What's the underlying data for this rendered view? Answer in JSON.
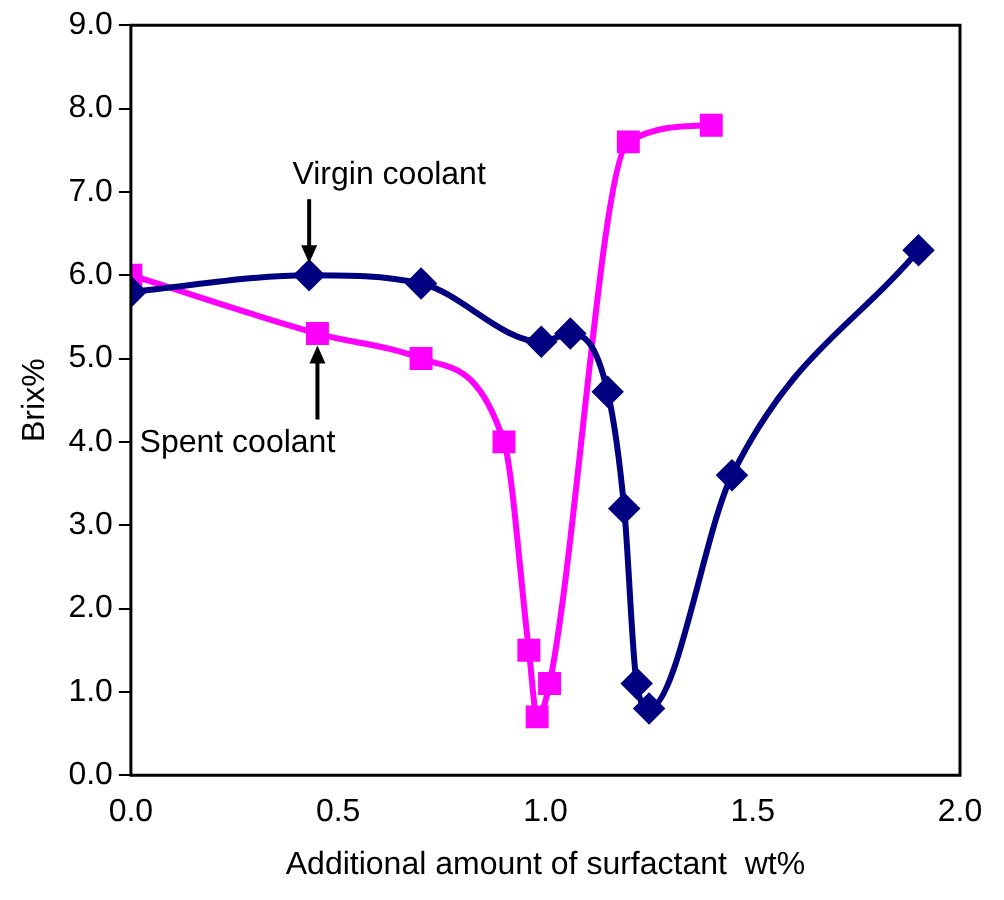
{
  "chart_data": {
    "type": "line",
    "xlabel": "Additional amount of surfactant  wt%",
    "ylabel": "Brix%",
    "xlim": [
      0,
      2
    ],
    "xticks": [
      {
        "value": 0,
        "label": "0.0"
      },
      {
        "value": 0.5,
        "label": "0.5"
      },
      {
        "value": 1,
        "label": "1.0"
      },
      {
        "value": 1.5,
        "label": "1.5"
      },
      {
        "value": 2,
        "label": "2.0"
      }
    ],
    "ylim": [
      0,
      9
    ],
    "yticks": [
      {
        "value": 0,
        "label": "0.0"
      },
      {
        "value": 1,
        "label": "1.0"
      },
      {
        "value": 2,
        "label": "2.0"
      },
      {
        "value": 3,
        "label": "3.0"
      },
      {
        "value": 4,
        "label": "4.0"
      },
      {
        "value": 5,
        "label": "5.0"
      },
      {
        "value": 6,
        "label": "6.0"
      },
      {
        "value": 7,
        "label": "7.0"
      },
      {
        "value": 8,
        "label": "8.0"
      },
      {
        "value": 9,
        "label": "9.0"
      }
    ],
    "grid": false,
    "legend": false,
    "series": [
      {
        "color": "#000080",
        "marker": "diamond",
        "x": [
          0,
          0.43,
          0.7,
          0.99,
          1.06,
          1.15,
          1.19,
          1.22,
          1.25,
          1.45,
          1.9
        ],
        "values": [
          5.8,
          6.0,
          5.9,
          5.2,
          5.3,
          4.6,
          3.2,
          1.1,
          0.8,
          3.6,
          6.3
        ]
      },
      {
        "color": "#ff00ff",
        "marker": "square",
        "x": [
          0,
          0.45,
          0.7,
          0.9,
          0.96,
          0.98,
          1.01,
          1.2,
          1.4
        ],
        "values": [
          6.0,
          5.3,
          5.0,
          4.0,
          1.5,
          0.7,
          1.1,
          7.6,
          7.8
        ]
      }
    ],
    "annotations": [
      {
        "text": "Virgin coolant",
        "x": 0.43,
        "y": 6.0
      },
      {
        "text": "Spent coolant",
        "x": 0.45,
        "y": 5.3
      }
    ]
  }
}
